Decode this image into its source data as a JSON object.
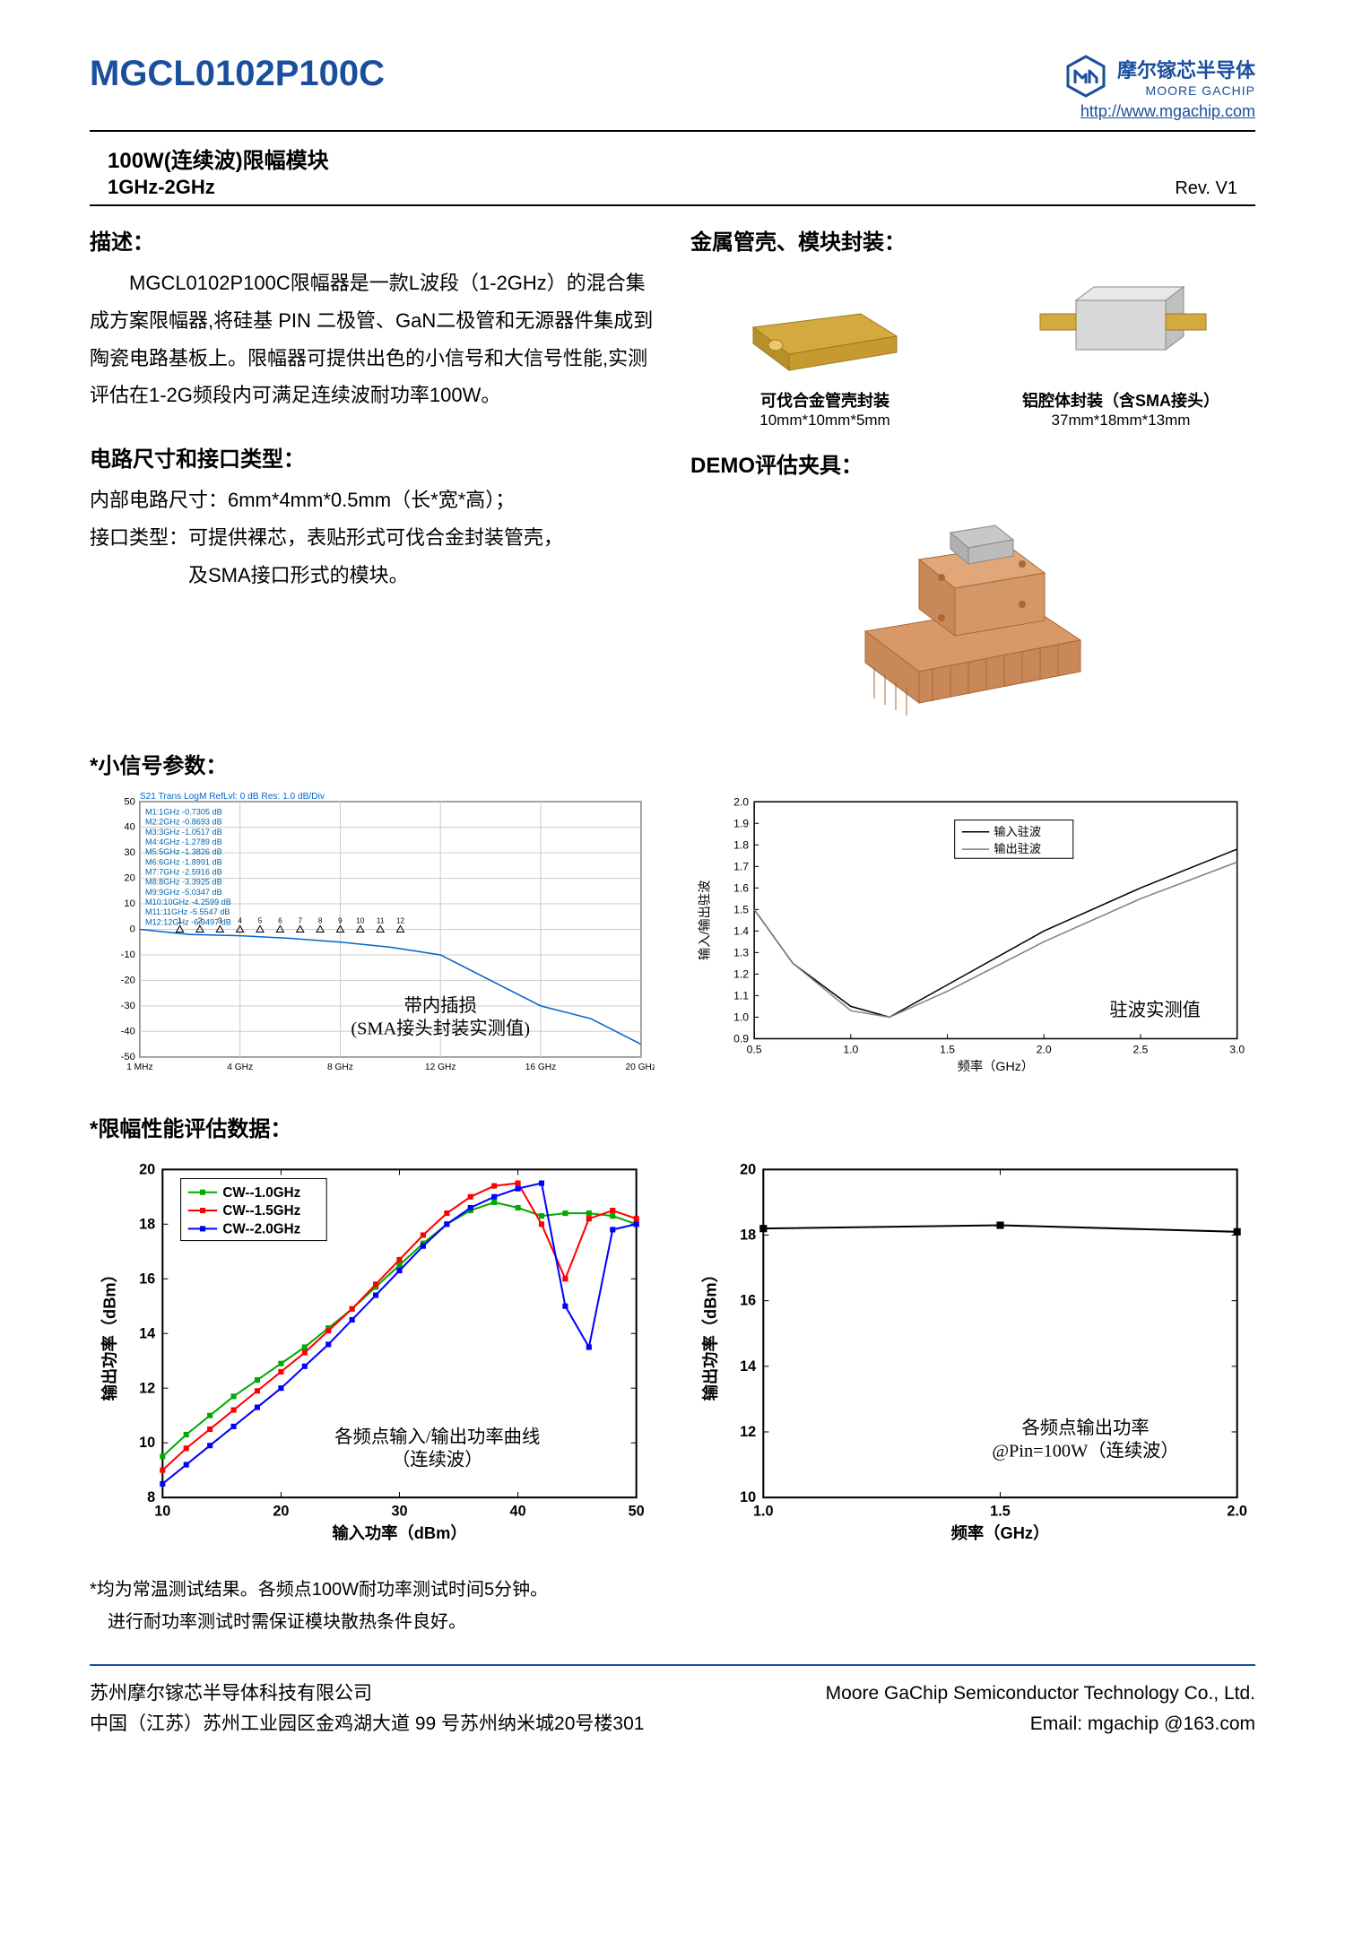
{
  "header": {
    "part_number": "MGCL0102P100C",
    "company_cn": "摩尔镓芯半导体",
    "company_en": "MOORE GACHIP",
    "url": "http://www.mgachip.com"
  },
  "title": {
    "line1": "100W(连续波)限幅模块",
    "line2": "1GHz-2GHz",
    "rev": "Rev. V1"
  },
  "desc": {
    "heading": "描述：",
    "text": "MGCL0102P100C限幅器是一款L波段（1-2GHz）的混合集成方案限幅器,将硅基 PIN 二极管、GaN二极管和无源器件集成到陶瓷电路基板上。限幅器可提供出色的小信号和大信号性能,实测评估在1-2G频段内可满足连续波耐功率100W。"
  },
  "dims": {
    "heading": "电路尺寸和接口类型：",
    "line1": "内部电路尺寸：6mm*4mm*0.5mm（长*宽*高）；",
    "line2": "接口类型：可提供裸芯，表贴形式可伐合金封装管壳，",
    "line3": "及SMA接口形式的模块。"
  },
  "packages": {
    "heading": "金属管壳、模块封装：",
    "item1": {
      "label": "可伐合金管壳封装",
      "dim": "10mm*10mm*5mm"
    },
    "item2": {
      "label": "铝腔体封装（含SMA接头）",
      "dim": "37mm*18mm*13mm"
    }
  },
  "demo": {
    "heading": "DEMO评估夹具："
  },
  "small_signal": {
    "heading": "*小信号参数：",
    "chart1": {
      "trace_header": "S21 Trans LogM RefLvl: 0 dB Res: 1.0 dB/Div",
      "markers": [
        "M1:1GHz  -0.7305 dB",
        "M2:2GHz  -0.8693 dB",
        "M3:3GHz  -1.0517 dB",
        "M4:4GHz  -1.2789 dB",
        "M5:5GHz  -1.3826 dB",
        "M6:6GHz  -1.8991 dB",
        "M7:7GHz  -2.5916 dB",
        "M8:8GHz  -3.3925 dB",
        "M9:9GHz  -5.0347 dB",
        "M10:10GHz -4.2599 dB",
        "M11:11GHz -5.5547 dB",
        "M12:12GHz -6.9497 dB"
      ],
      "ylim": [
        -50,
        50
      ],
      "ytick_step": 10,
      "xmin": "1 MHz",
      "xmax": "20 GHz",
      "xticks": [
        "1 MHz",
        "4 GHz",
        "8 GHz",
        "12 GHz",
        "16 GHz",
        "20 GHz"
      ],
      "annotation1": "带内插损",
      "annotation2": "(SMA接头封装实测值)",
      "line_color": "#0066cc",
      "marker_color": "#000000",
      "bg_color": "#ffffff",
      "grid_color": "#cccccc"
    },
    "chart2": {
      "xlabel": "频率（GHz）",
      "ylabel": "输入/输出驻波",
      "legend": [
        "输入驻波",
        "输出驻波"
      ],
      "ylim": [
        0.9,
        2.0
      ],
      "ytick_step": 0.1,
      "xlim": [
        0.5,
        3.0
      ],
      "xtick_step": 0.5,
      "annotation": "驻波实测值",
      "series1_color": "#000000",
      "series2_color": "#808080",
      "series1": {
        "x": [
          0.5,
          0.7,
          1.0,
          1.2,
          1.5,
          2.0,
          2.5,
          3.0
        ],
        "y": [
          1.5,
          1.25,
          1.05,
          1.0,
          1.15,
          1.4,
          1.6,
          1.78
        ]
      },
      "series2": {
        "x": [
          0.5,
          0.7,
          1.0,
          1.2,
          1.5,
          2.0,
          2.5,
          3.0
        ],
        "y": [
          1.5,
          1.25,
          1.03,
          1.0,
          1.12,
          1.35,
          1.55,
          1.72
        ]
      },
      "bg_color": "#ffffff",
      "grid_color": "#000000"
    }
  },
  "limiter": {
    "heading": "*限幅性能评估数据：",
    "chart3": {
      "xlabel": "输入功率（dBm）",
      "ylabel": "输出功率（dBm）",
      "legend": [
        "CW--1.0GHz",
        "CW--1.5GHz",
        "CW--2.0GHz"
      ],
      "colors": [
        "#00aa00",
        "#ff0000",
        "#0000ff"
      ],
      "xlim": [
        10,
        50
      ],
      "xtick_step": 10,
      "ylim": [
        8,
        20
      ],
      "ytick_step": 2,
      "annotation1": "各频点输入/输出功率曲线",
      "annotation2": "（连续波）",
      "series_green": {
        "x": [
          10,
          12,
          14,
          16,
          18,
          20,
          22,
          24,
          26,
          28,
          30,
          32,
          34,
          36,
          38,
          40,
          42,
          44,
          46,
          48,
          50
        ],
        "y": [
          9.5,
          10.3,
          11.0,
          11.7,
          12.3,
          12.9,
          13.5,
          14.2,
          14.9,
          15.7,
          16.5,
          17.3,
          18.0,
          18.5,
          18.8,
          18.6,
          18.3,
          18.4,
          18.4,
          18.3,
          18.0
        ]
      },
      "series_red": {
        "x": [
          10,
          12,
          14,
          16,
          18,
          20,
          22,
          24,
          26,
          28,
          30,
          32,
          34,
          36,
          38,
          40,
          42,
          44,
          46,
          48,
          50
        ],
        "y": [
          9.0,
          9.8,
          10.5,
          11.2,
          11.9,
          12.6,
          13.3,
          14.1,
          14.9,
          15.8,
          16.7,
          17.6,
          18.4,
          19.0,
          19.4,
          19.5,
          18.0,
          16.0,
          18.2,
          18.5,
          18.2
        ]
      },
      "series_blue": {
        "x": [
          10,
          12,
          14,
          16,
          18,
          20,
          22,
          24,
          26,
          28,
          30,
          32,
          34,
          36,
          38,
          40,
          42,
          44,
          46,
          48,
          50
        ],
        "y": [
          8.5,
          9.2,
          9.9,
          10.6,
          11.3,
          12.0,
          12.8,
          13.6,
          14.5,
          15.4,
          16.3,
          17.2,
          18.0,
          18.6,
          19.0,
          19.3,
          19.5,
          15.0,
          13.5,
          17.8,
          18.0
        ]
      },
      "marker": "square",
      "bg_color": "#ffffff"
    },
    "chart4": {
      "xlabel": "频率（GHz）",
      "ylabel": "输出功率（dBm）",
      "xlim": [
        1.0,
        2.0
      ],
      "xticks": [
        1.0,
        1.5,
        2.0
      ],
      "ylim": [
        10,
        20
      ],
      "ytick_step": 2,
      "annotation1": "各频点输出功率",
      "annotation2": "@Pin=100W（连续波）",
      "series": {
        "x": [
          1.0,
          1.5,
          2.0
        ],
        "y": [
          18.2,
          18.3,
          18.1
        ]
      },
      "color": "#000000",
      "marker": "square",
      "bg_color": "#ffffff"
    }
  },
  "notes": {
    "line1": "*均为常温测试结果。各频点100W耐功率测试时间5分钟。",
    "line2": "进行耐功率测试时需保证模块散热条件良好。"
  },
  "footer": {
    "company_cn": "苏州摩尔镓芯半导体科技有限公司",
    "company_en": "Moore GaChip Semiconductor Technology Co., Ltd.",
    "address": "中国（江苏）苏州工业园区金鸡湖大道 99 号苏州纳米城20号楼301",
    "email_label": "Email: mgachip @163.com"
  }
}
